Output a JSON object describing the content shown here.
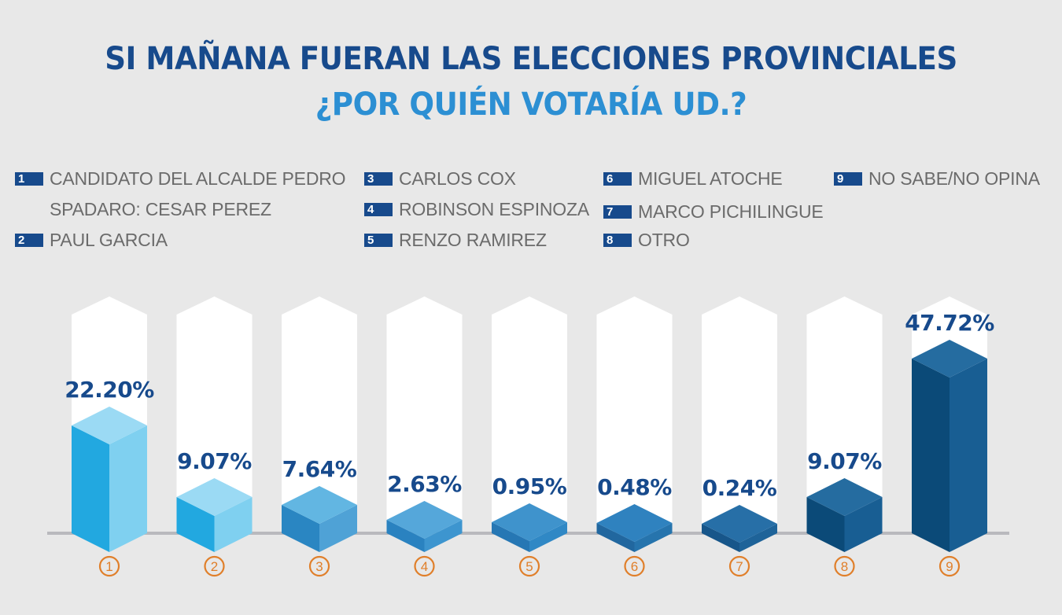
{
  "header": {
    "title_line1": "SI MAÑANA FUERAN LAS ELECCIONES PROVINCIALES",
    "title_line2": "¿POR QUIÉN VOTARÍA UD.?"
  },
  "legend": [
    {
      "num": "1",
      "label": "CANDIDATO DEL ALCALDE  PEDRO\nSPADARO: CESAR PEREZ"
    },
    {
      "num": "2",
      "label": "PAUL GARCIA"
    },
    {
      "num": "3",
      "label": "CARLOS COX"
    },
    {
      "num": "4",
      "label": "ROBINSON ESPINOZA"
    },
    {
      "num": "5",
      "label": "RENZO RAMIREZ"
    },
    {
      "num": "6",
      "label": "MIGUEL ATOCHE"
    },
    {
      "num": "7",
      "label": "MARCO PICHILINGUE"
    },
    {
      "num": "8",
      "label": "OTRO"
    },
    {
      "num": "9",
      "label": "NO SABE/NO OPINA"
    }
  ],
  "colors": {
    "title_dark": "#174a8c",
    "title_light": "#2c8fd3",
    "legend_box": "#174a8c",
    "value_label": "#174a8c",
    "category_circle": "#e07f2a",
    "baseline": "#b9b9bd",
    "backdrop": "#ffffff"
  },
  "chart_data": {
    "type": "bar",
    "title": "SI MAÑANA FUERAN LAS ELECCIONES PROVINCIALES ¿POR QUIÉN VOTARÍA UD.?",
    "xlabel": "",
    "ylabel": "",
    "unit": "%",
    "grid": false,
    "legend_position": "top",
    "categories": [
      "1",
      "2",
      "3",
      "4",
      "5",
      "6",
      "7",
      "8",
      "9"
    ],
    "category_names": [
      "CANDIDATO DEL ALCALDE PEDRO SPADARO: CESAR PEREZ",
      "PAUL GARCIA",
      "CARLOS COX",
      "ROBINSON ESPINOZA",
      "RENZO RAMIREZ",
      "MIGUEL ATOCHE",
      "MARCO PICHILINGUE",
      "OTRO",
      "NO SABE/NO OPINA"
    ],
    "values": [
      22.2,
      9.07,
      7.64,
      2.63,
      0.95,
      0.48,
      0.24,
      9.07,
      47.72
    ],
    "value_labels": [
      "22.20%",
      "9.07%",
      "7.64%",
      "2.63%",
      "0.95%",
      "0.48%",
      "0.24%",
      "9.07%",
      "47.72%"
    ],
    "bar_colors": [
      {
        "left": "#22a8e0",
        "right": "#7fd0f0",
        "top": "#9bdaf4"
      },
      {
        "left": "#22a8e0",
        "right": "#7fd0f0",
        "top": "#9bdaf4"
      },
      {
        "left": "#2a86c2",
        "right": "#4fa2d6",
        "top": "#62b6e2"
      },
      {
        "left": "#2a82c0",
        "right": "#3d95cf",
        "top": "#55a7da"
      },
      {
        "left": "#2677b4",
        "right": "#3088c5",
        "top": "#3f93cc"
      },
      {
        "left": "#21679f",
        "right": "#2674ad",
        "top": "#2f82bf"
      },
      {
        "left": "#17568a",
        "right": "#1e6399",
        "top": "#276fa7"
      },
      {
        "left": "#0b4a78",
        "right": "#185e93",
        "top": "#256ca0"
      },
      {
        "left": "#0b4a78",
        "right": "#185e93",
        "top": "#256ca0"
      }
    ],
    "ylim": [
      0,
      50
    ]
  }
}
